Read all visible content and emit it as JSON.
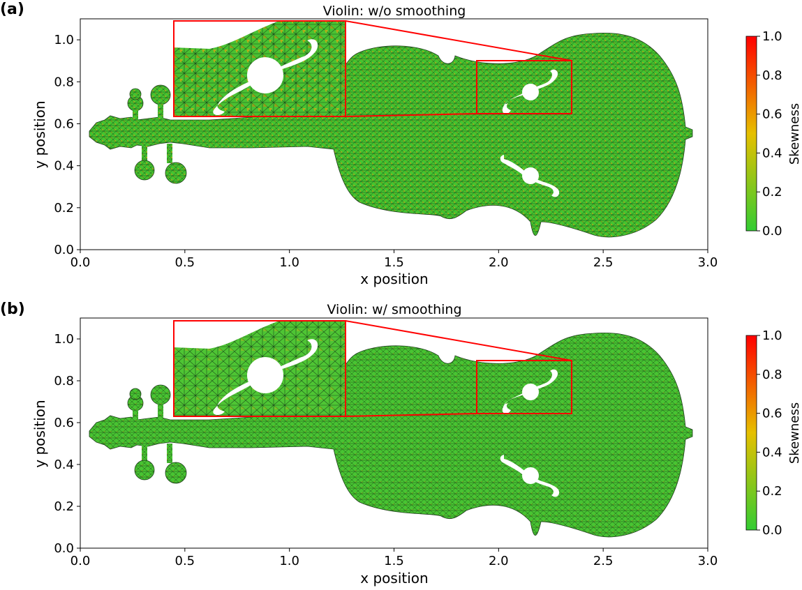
{
  "chart_data": [
    {
      "type": "heatmap",
      "panel_label": "(a)",
      "title": "Violin: w/o smoothing",
      "xlabel": "x position",
      "ylabel": "y position",
      "xlim": [
        0.0,
        3.0
      ],
      "ylim": [
        0.0,
        1.1
      ],
      "xticks": [
        "0.0",
        "0.5",
        "1.0",
        "1.5",
        "2.0",
        "2.5",
        "3.0"
      ],
      "yticks": [
        "0.0",
        "0.2",
        "0.4",
        "0.6",
        "0.8",
        "1.0"
      ],
      "colorbar": {
        "label": "Skewness",
        "range": [
          0.0,
          1.0
        ],
        "ticks": [
          "0.0",
          "0.2",
          "0.4",
          "0.6",
          "0.8",
          "1.0"
        ]
      },
      "zoom_region": {
        "x": [
          1.9,
          2.35
        ],
        "y": [
          0.65,
          0.9
        ]
      },
      "inset_extent": {
        "x": [
          0.45,
          1.27
        ],
        "y": [
          0.63,
          1.09
        ]
      },
      "skewness_noise_level": 0.55
    },
    {
      "type": "heatmap",
      "panel_label": "(b)",
      "title": "Violin: w/ smoothing",
      "xlabel": "x position",
      "ylabel": "y position",
      "xlim": [
        0.0,
        3.0
      ],
      "ylim": [
        0.0,
        1.1
      ],
      "xticks": [
        "0.0",
        "0.5",
        "1.0",
        "1.5",
        "2.0",
        "2.5",
        "3.0"
      ],
      "yticks": [
        "0.0",
        "0.2",
        "0.4",
        "0.6",
        "0.8",
        "1.0"
      ],
      "colorbar": {
        "label": "Skewness",
        "range": [
          0.0,
          1.0
        ],
        "ticks": [
          "0.0",
          "0.2",
          "0.4",
          "0.6",
          "0.8",
          "1.0"
        ]
      },
      "zoom_region": {
        "x": [
          1.9,
          2.35
        ],
        "y": [
          0.65,
          0.9
        ]
      },
      "inset_extent": {
        "x": [
          0.45,
          1.27
        ],
        "y": [
          0.63,
          1.09
        ]
      },
      "skewness_noise_level": 0.3
    }
  ],
  "colors": {
    "low": "#33cc33",
    "mid": "#e6c000",
    "high": "#ff0000",
    "zoom_box": "#ff0000",
    "mesh_line": "#1a3a1a"
  }
}
